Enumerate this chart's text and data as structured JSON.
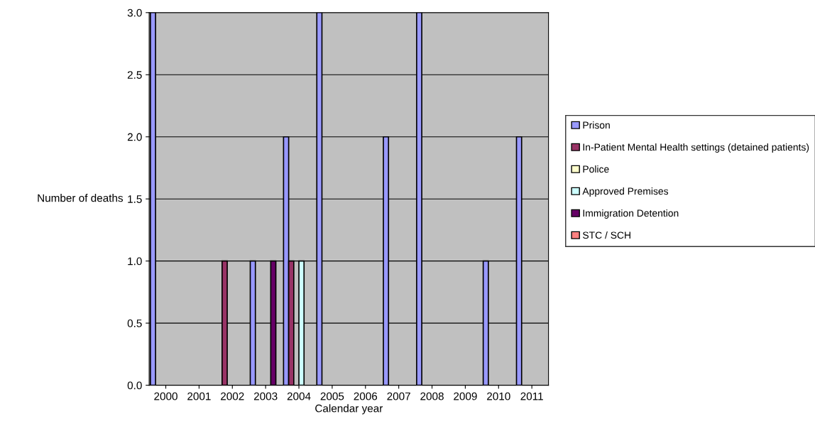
{
  "chart_data": {
    "type": "bar",
    "xlabel": "Calendar year",
    "ylabel": "Number of deaths",
    "categories": [
      "2000",
      "2001",
      "2002",
      "2003",
      "2004",
      "2005",
      "2006",
      "2007",
      "2008",
      "2009",
      "2010",
      "2011"
    ],
    "series": [
      {
        "name": "Prison",
        "color": "#9999ff",
        "values": [
          3,
          0,
          0,
          1,
          2,
          3,
          0,
          2,
          3,
          0,
          1,
          2
        ]
      },
      {
        "name": "In-Patient Mental Health settings (detained patients)",
        "color": "#993366",
        "values": [
          0,
          0,
          1,
          0,
          1,
          0,
          0,
          0,
          0,
          0,
          0,
          0
        ]
      },
      {
        "name": "Police",
        "color": "#ffffcc",
        "values": [
          0,
          0,
          0,
          0,
          0,
          0,
          0,
          0,
          0,
          0,
          0,
          0
        ]
      },
      {
        "name": "Approved Premises",
        "color": "#ccffff",
        "values": [
          0,
          0,
          0,
          0,
          1,
          0,
          0,
          0,
          0,
          0,
          0,
          0
        ]
      },
      {
        "name": "Immigration Detention",
        "color": "#660066",
        "values": [
          0,
          0,
          0,
          1,
          0,
          0,
          0,
          0,
          0,
          0,
          0,
          0
        ]
      },
      {
        "name": "STC / SCH",
        "color": "#ff8080",
        "values": [
          0,
          0,
          0,
          0,
          0,
          0,
          0,
          0,
          0,
          0,
          0,
          0
        ]
      }
    ],
    "ylim": [
      0,
      3
    ],
    "yticks": [
      {
        "value": 0,
        "label": "0.0"
      },
      {
        "value": 0.5,
        "label": "0.5"
      },
      {
        "value": 1,
        "label": "1.0"
      },
      {
        "value": 1.5,
        "label": "1.5"
      },
      {
        "value": 2,
        "label": "2.0"
      },
      {
        "value": 2.5,
        "label": "2.5"
      },
      {
        "value": 3,
        "label": "3.0"
      }
    ],
    "grid": "y",
    "legend": "right"
  }
}
